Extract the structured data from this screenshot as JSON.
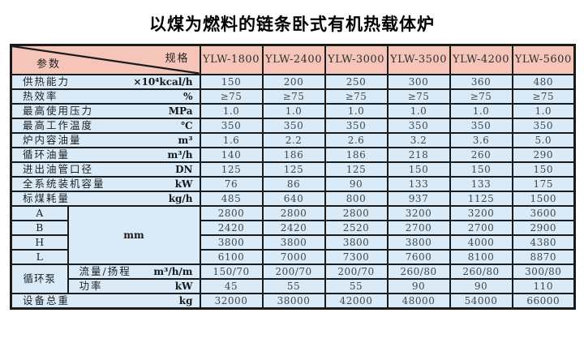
{
  "title": "以煤为燃料的链条卧式有机热载体炉",
  "colors": {
    "header_bg": "#f5c5ba",
    "cell_bg": "#d9ebf8",
    "border": "#1b1b1b"
  },
  "table": {
    "corner": {
      "top_right": "规格",
      "bottom_left": "参数"
    },
    "columns": [
      "YLW-1800",
      "YLW-2400",
      "YLW-3000",
      "YLW-3500",
      "YLW-4200",
      "YLW-5600"
    ],
    "rows": [
      {
        "label": "供热能力",
        "unit": "×10⁴kcal/h",
        "values": [
          "150",
          "200",
          "250",
          "300",
          "360",
          "480"
        ]
      },
      {
        "label": "热效率",
        "unit": "%",
        "values": [
          "≥75",
          "≥75",
          "≥75",
          "≥75",
          "≥75",
          "≥75"
        ]
      },
      {
        "label": "最高使用压力",
        "unit": "MPa",
        "values": [
          "1.0",
          "1.0",
          "1.0",
          "1.0",
          "1.0",
          "1.0"
        ]
      },
      {
        "label": "最高工作温度",
        "unit": "℃",
        "values": [
          "350",
          "350",
          "350",
          "350",
          "350",
          "350"
        ]
      },
      {
        "label": "炉内容油量",
        "unit": "m³",
        "values": [
          "1.6",
          "2.2",
          "2.6",
          "3.2",
          "3.6",
          "5.0"
        ]
      },
      {
        "label": "循环油量",
        "unit": "m³/h",
        "values": [
          "140",
          "186",
          "186",
          "218",
          "260",
          "290"
        ]
      },
      {
        "label": "进出油管口径",
        "unit": "DN",
        "values": [
          "125",
          "125",
          "125",
          "150",
          "150",
          "150"
        ]
      },
      {
        "label": "全系统装机容量",
        "unit": "kW",
        "values": [
          "76",
          "86",
          "90",
          "133",
          "133",
          "175"
        ]
      },
      {
        "label": "标煤耗量",
        "unit": "kg/h",
        "values": [
          "485",
          "640",
          "800",
          "937",
          "1125",
          "1500"
        ]
      }
    ],
    "dimensions": {
      "unit": "mm",
      "rows": [
        {
          "label": "A",
          "values": [
            "2800",
            "2800",
            "2800",
            "3200",
            "3200",
            "3600"
          ]
        },
        {
          "label": "B",
          "values": [
            "2420",
            "2420",
            "2520",
            "2700",
            "2700",
            "2900"
          ]
        },
        {
          "label": "H",
          "values": [
            "3800",
            "3800",
            "3800",
            "3800",
            "4000",
            "4380"
          ]
        },
        {
          "label": "L",
          "values": [
            "6100",
            "7000",
            "7300",
            "7600",
            "8100",
            "8870"
          ]
        }
      ]
    },
    "pump": {
      "label": "循环泵",
      "rows": [
        {
          "label": "流量/扬程",
          "unit": "m³/h/m",
          "values": [
            "150/70",
            "200/70",
            "200/70",
            "260/80",
            "260/80",
            "300/80"
          ]
        },
        {
          "label": "功率",
          "unit": "kW",
          "values": [
            "45",
            "55",
            "55",
            "90",
            "90",
            "110"
          ]
        }
      ]
    },
    "total": {
      "label": "设备总重",
      "unit": "kg",
      "values": [
        "32000",
        "38000",
        "42000",
        "48000",
        "54000",
        "66000"
      ]
    }
  }
}
